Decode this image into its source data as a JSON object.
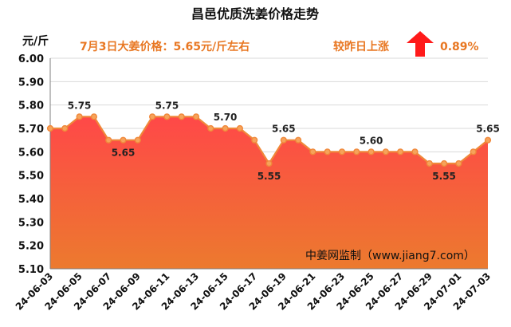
{
  "chart_data": {
    "type": "area",
    "title": "昌邑优质洗姜价格走势",
    "ylabel": "元/斤",
    "ylim": [
      5.1,
      6.0
    ],
    "yticks": [
      "5.10",
      "5.20",
      "5.30",
      "5.40",
      "5.50",
      "5.60",
      "5.70",
      "5.80",
      "5.90",
      "6.00"
    ],
    "x": [
      "24-06-03",
      "24-06-04",
      "24-06-05",
      "24-06-06",
      "24-06-07",
      "24-06-08",
      "24-06-09",
      "24-06-10",
      "24-06-11",
      "24-06-12",
      "24-06-13",
      "24-06-14",
      "24-06-15",
      "24-06-16",
      "24-06-17",
      "24-06-18",
      "24-06-19",
      "24-06-20",
      "24-06-21",
      "24-06-22",
      "24-06-23",
      "24-06-24",
      "24-06-25",
      "24-06-26",
      "24-06-27",
      "24-06-28",
      "24-06-29",
      "24-06-30",
      "24-07-01",
      "24-07-02",
      "24-07-03"
    ],
    "xtick_labels": [
      "24-06-03",
      "24-06-05",
      "24-06-07",
      "24-06-09",
      "24-06-11",
      "24-06-13",
      "24-06-15",
      "24-06-17",
      "24-06-19",
      "24-06-21",
      "24-06-23",
      "24-06-25",
      "24-06-27",
      "24-06-29",
      "24-07-01",
      "24-07-03"
    ],
    "values": [
      5.7,
      5.7,
      5.75,
      5.75,
      5.65,
      5.65,
      5.65,
      5.75,
      5.75,
      5.75,
      5.75,
      5.7,
      5.7,
      5.7,
      5.65,
      5.55,
      5.65,
      5.65,
      5.6,
      5.6,
      5.6,
      5.6,
      5.6,
      5.6,
      5.6,
      5.6,
      5.55,
      5.55,
      5.55,
      5.6,
      5.65
    ],
    "data_labels": [
      {
        "index": 2,
        "text": "5.75",
        "pos": "above"
      },
      {
        "index": 5,
        "text": "5.65",
        "pos": "below"
      },
      {
        "index": 8,
        "text": "5.75",
        "pos": "above"
      },
      {
        "index": 12,
        "text": "5.70",
        "pos": "above"
      },
      {
        "index": 15,
        "text": "5.55",
        "pos": "below"
      },
      {
        "index": 16,
        "text": "5.65",
        "pos": "above"
      },
      {
        "index": 22,
        "text": "5.60",
        "pos": "above"
      },
      {
        "index": 27,
        "text": "5.55",
        "pos": "below"
      },
      {
        "index": 30,
        "text": "5.65",
        "pos": "above"
      }
    ],
    "grid": true,
    "annotations": {
      "today_price": "7月3日大姜价格：5.65元/斤左右",
      "change_text": "较昨日上涨",
      "change_value": "0.89%",
      "trend": "up",
      "watermark": "中姜网监制（www.jiang7.com）"
    }
  },
  "colors": {
    "line": "#f0883a",
    "marker_fill": "#f6a35a",
    "area_top": "#ff4848",
    "area_bottom": "#ec7a2e",
    "arrow": "#ff1a1a",
    "annotation": "#e87722",
    "grid": "#d9d9d9"
  }
}
